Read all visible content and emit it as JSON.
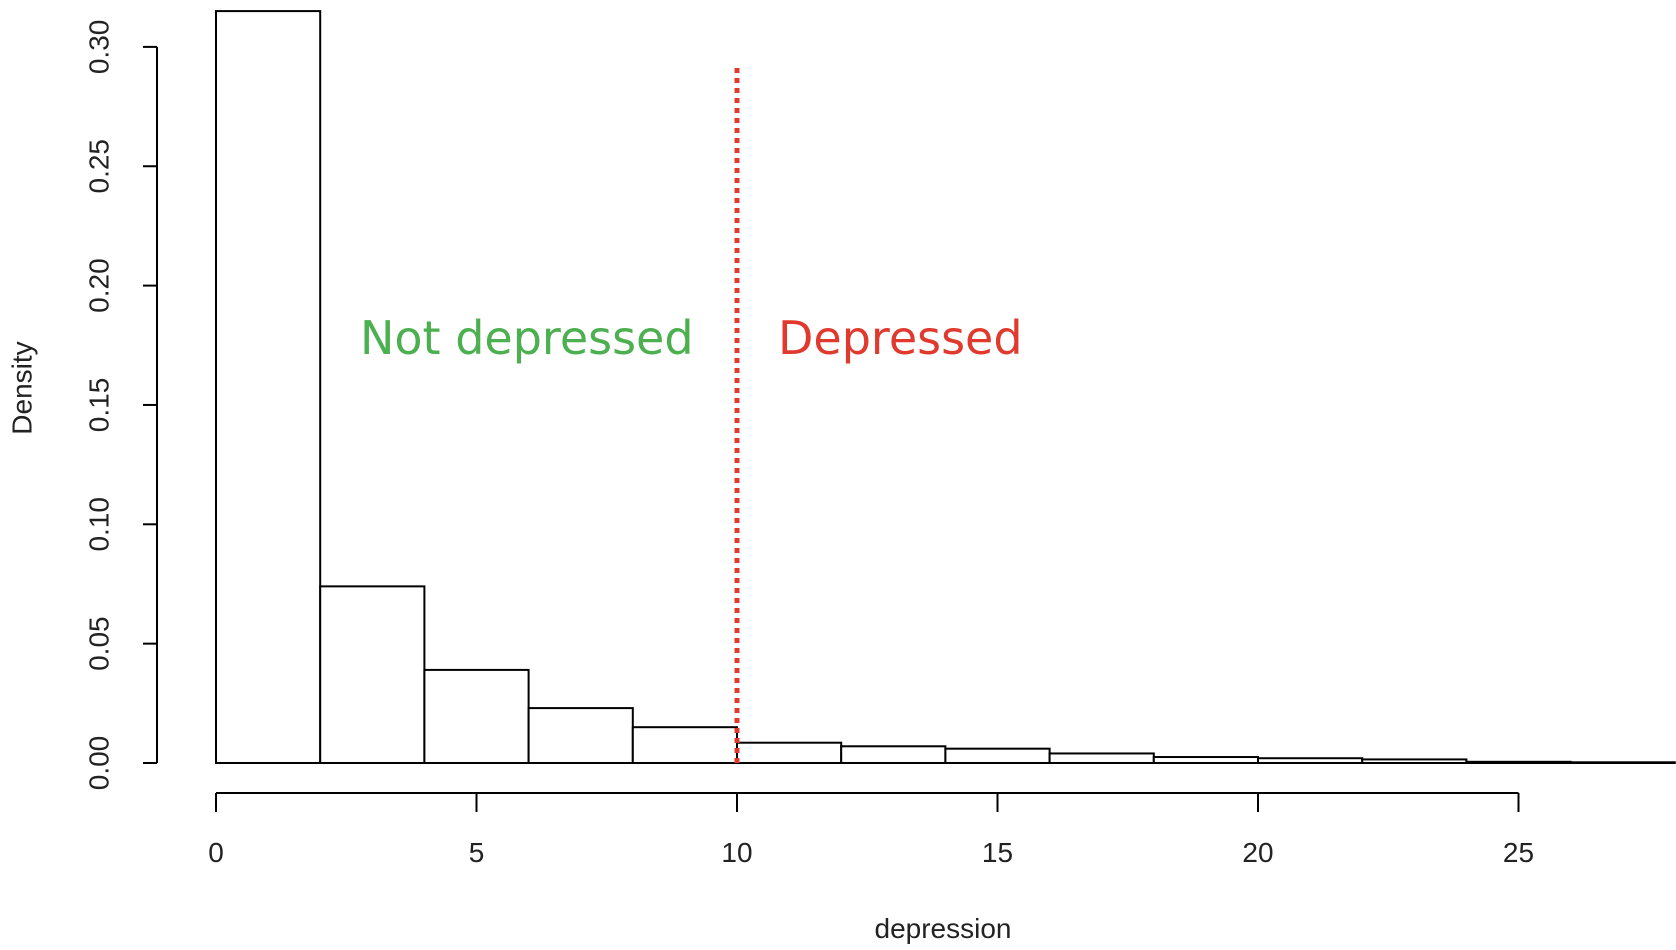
{
  "chart_data": {
    "type": "histogram",
    "title": "",
    "xlabel": "depression",
    "ylabel": "Density",
    "xlim": [
      0,
      28
    ],
    "ylim": [
      0,
      0.32
    ],
    "bin_width": 2,
    "bins": [
      {
        "start": 0,
        "end": 2,
        "density": 0.315
      },
      {
        "start": 2,
        "end": 4,
        "density": 0.074
      },
      {
        "start": 4,
        "end": 6,
        "density": 0.039
      },
      {
        "start": 6,
        "end": 8,
        "density": 0.023
      },
      {
        "start": 8,
        "end": 10,
        "density": 0.015
      },
      {
        "start": 10,
        "end": 12,
        "density": 0.0085
      },
      {
        "start": 12,
        "end": 14,
        "density": 0.007
      },
      {
        "start": 14,
        "end": 16,
        "density": 0.006
      },
      {
        "start": 16,
        "end": 18,
        "density": 0.004
      },
      {
        "start": 18,
        "end": 20,
        "density": 0.0025
      },
      {
        "start": 20,
        "end": 22,
        "density": 0.002
      },
      {
        "start": 22,
        "end": 24,
        "density": 0.0015
      },
      {
        "start": 24,
        "end": 26,
        "density": 0.0005
      },
      {
        "start": 26,
        "end": 28,
        "density": 0.0003
      }
    ],
    "x_ticks": [
      0,
      5,
      10,
      15,
      20,
      25
    ],
    "x_tick_labels": [
      "0",
      "5",
      "10",
      "15",
      "20",
      "25"
    ],
    "y_ticks": [
      0,
      0.05,
      0.1,
      0.15,
      0.2,
      0.25,
      0.3
    ],
    "y_tick_labels": [
      "0.00",
      "0.05",
      "0.10",
      "0.15",
      "0.20",
      "0.25",
      "0.30"
    ],
    "threshold": {
      "x": 10,
      "color": "#e03a2f",
      "style": "dotted"
    },
    "annotations": [
      {
        "text": "Not depressed",
        "color": "#4caf50"
      },
      {
        "text": "Depressed",
        "color": "#e03a2f"
      }
    ]
  }
}
